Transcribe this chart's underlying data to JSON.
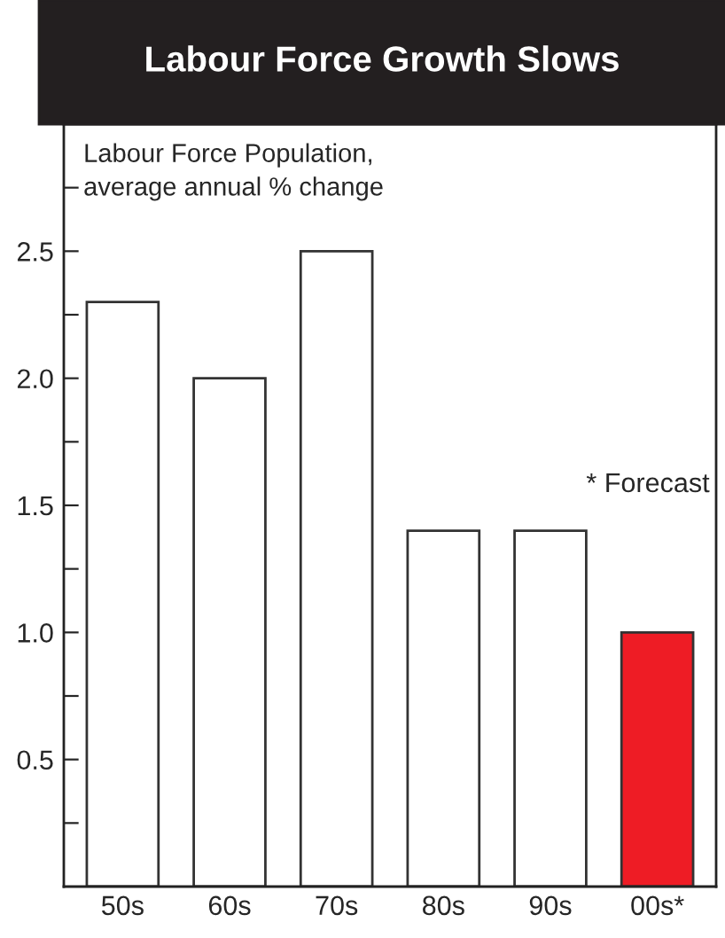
{
  "chart_data": {
    "type": "bar",
    "title": "Labour Force Growth Slows",
    "ylabel": "Labour Force Population,\naverage annual % change",
    "categories": [
      "50s",
      "60s",
      "70s",
      "80s",
      "90s",
      "00s*"
    ],
    "values": [
      2.3,
      2.0,
      2.5,
      1.4,
      1.4,
      1.0
    ],
    "colors": [
      "#ffffff",
      "#ffffff",
      "#ffffff",
      "#ffffff",
      "#ffffff",
      "#ee1c25"
    ],
    "ylim": [
      0,
      3.0
    ],
    "yticks": [
      {
        "value": 0.25,
        "label": null
      },
      0.5,
      {
        "value": 0.75,
        "label": null
      },
      {
        "value": 1,
        "label": "1.0"
      },
      {
        "value": 1.25,
        "label": null
      },
      1.5,
      {
        "value": 1.75,
        "label": null
      },
      {
        "value": 2,
        "label": "2.0"
      },
      {
        "value": 2.25,
        "label": null
      },
      2.5,
      {
        "value": 2.75,
        "label": null
      }
    ],
    "annotations": [
      "* Forecast"
    ],
    "grid": false,
    "legend": false
  }
}
